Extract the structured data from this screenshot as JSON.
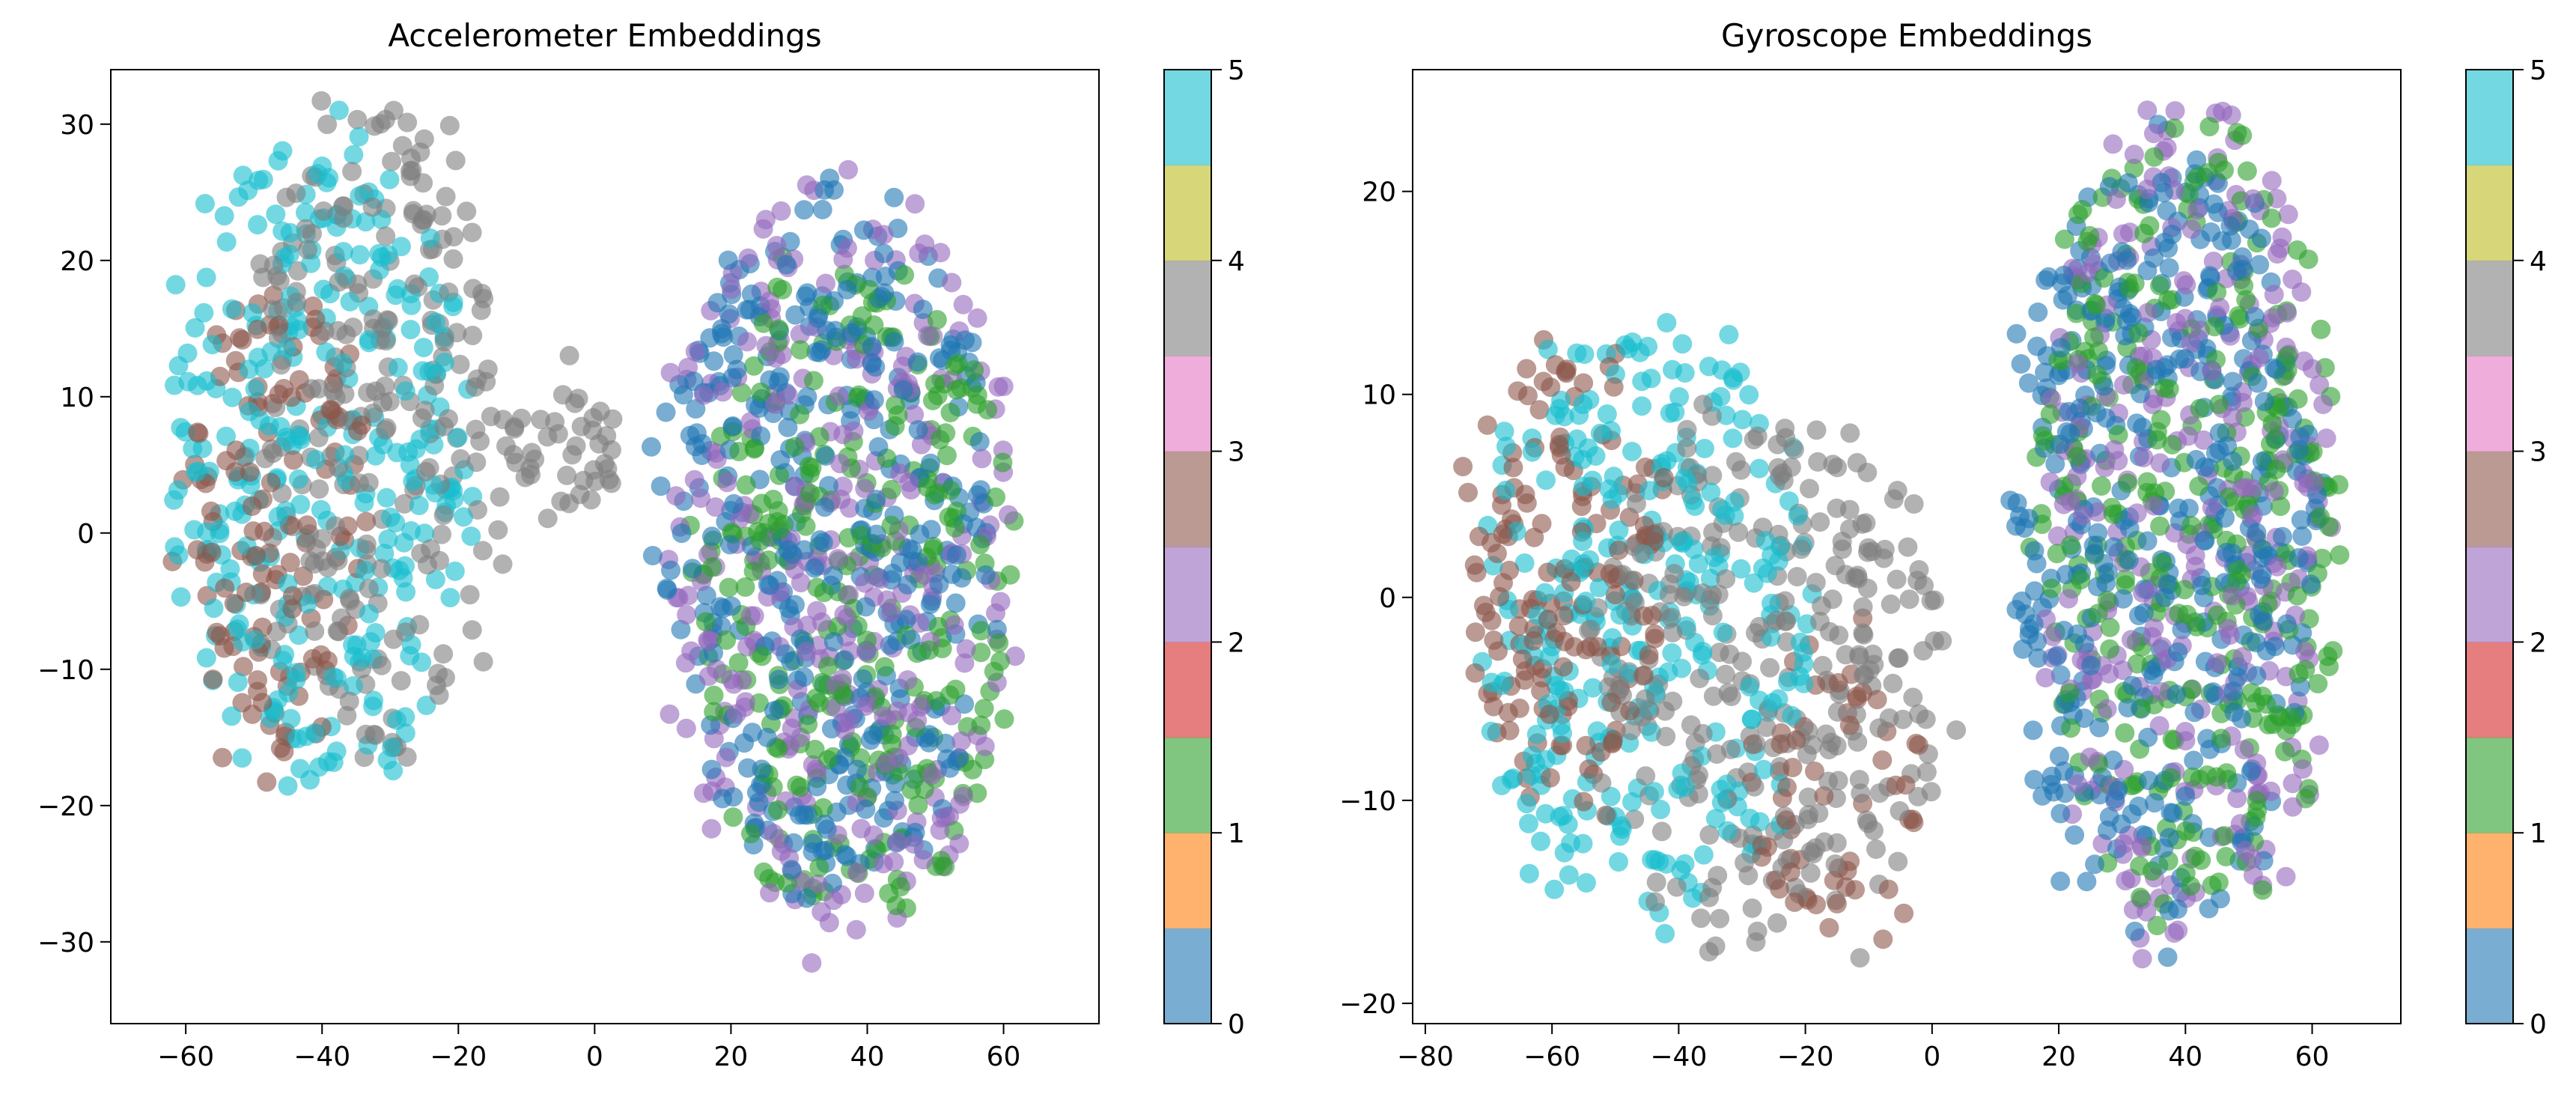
{
  "chart_data": [
    {
      "type": "scatter",
      "title": "Accelerometer Embeddings",
      "xlim": [
        -71,
        74
      ],
      "ylim": [
        -36,
        34
      ],
      "xticks": [
        -60,
        -40,
        -20,
        0,
        20,
        40,
        60
      ],
      "xtick_labels": [
        "−60",
        "−40",
        "−20",
        "0",
        "20",
        "40",
        "60"
      ],
      "yticks": [
        -30,
        -20,
        -10,
        0,
        10,
        20,
        30
      ],
      "ytick_labels": [
        "−30",
        "−20",
        "−10",
        "0",
        "10",
        "20",
        "30"
      ],
      "colorbar": {
        "range": [
          0,
          5
        ],
        "ticks": [
          "0",
          "1",
          "2",
          "3",
          "4",
          "5"
        ]
      },
      "point_alpha": 0.6,
      "grid": false,
      "clusters": [
        {
          "label": 5,
          "cx": -40,
          "cy": 5,
          "rx": 22,
          "ry": 25,
          "n": 300
        },
        {
          "label": 4,
          "cx": -32,
          "cy": 8,
          "rx": 19,
          "ry": 25,
          "n": 250
        },
        {
          "label": 3,
          "cx": -48,
          "cy": 0,
          "rx": 14,
          "ry": 18,
          "n": 130
        },
        {
          "label": 4,
          "cx": -4,
          "cy": 6,
          "rx": 9,
          "ry": 5,
          "n": 40
        },
        {
          "label": 0,
          "cx": 34,
          "cy": 0,
          "rx": 24,
          "ry": 26,
          "n": 380
        },
        {
          "label": 2,
          "cx": 36,
          "cy": -2,
          "rx": 26,
          "ry": 28,
          "n": 320
        },
        {
          "label": 1,
          "cx": 38,
          "cy": -4,
          "rx": 24,
          "ry": 24,
          "n": 300
        }
      ]
    },
    {
      "type": "scatter",
      "title": "Gyroscope Embeddings",
      "xlim": [
        -82,
        74
      ],
      "ylim": [
        -21,
        26
      ],
      "xticks": [
        -80,
        -60,
        -40,
        -20,
        0,
        20,
        40,
        60
      ],
      "xtick_labels": [
        "−80",
        "−60",
        "−40",
        "−20",
        "0",
        "20",
        "40",
        "60"
      ],
      "yticks": [
        -20,
        -10,
        0,
        10,
        20
      ],
      "ytick_labels": [
        "−20",
        "−10",
        "0",
        "10",
        "20"
      ],
      "colorbar": {
        "range": [
          0,
          5
        ],
        "ticks": [
          "0",
          "1",
          "2",
          "3",
          "4",
          "5"
        ]
      },
      "point_alpha": 0.6,
      "grid": false,
      "clusters": [
        {
          "label": 3,
          "cx": -58,
          "cy": 1,
          "rx": 16,
          "ry": 12,
          "n": 160
        },
        {
          "label": 5,
          "cx": -45,
          "cy": -1,
          "rx": 26,
          "ry": 15,
          "n": 300
        },
        {
          "label": 4,
          "cx": -25,
          "cy": -4,
          "rx": 28,
          "ry": 13,
          "n": 300
        },
        {
          "label": 3,
          "cx": -15,
          "cy": -10,
          "rx": 14,
          "ry": 7,
          "n": 60
        },
        {
          "label": 0,
          "cx": 36,
          "cy": 3,
          "rx": 24,
          "ry": 20,
          "n": 400
        },
        {
          "label": 1,
          "cx": 40,
          "cy": 5,
          "rx": 24,
          "ry": 20,
          "n": 330
        },
        {
          "label": 2,
          "cx": 40,
          "cy": 4,
          "rx": 24,
          "ry": 21,
          "n": 300
        }
      ]
    }
  ],
  "colors": {
    "class_colors": [
      "#1f77b4",
      "#ff7f0e",
      "#2ca02c",
      "#d62728",
      "#9467bd",
      "#8c564b",
      "#e377c2",
      "#7f7f7f",
      "#bcbd22",
      "#17becf"
    ],
    "frame": "#000000",
    "background": "#ffffff"
  }
}
